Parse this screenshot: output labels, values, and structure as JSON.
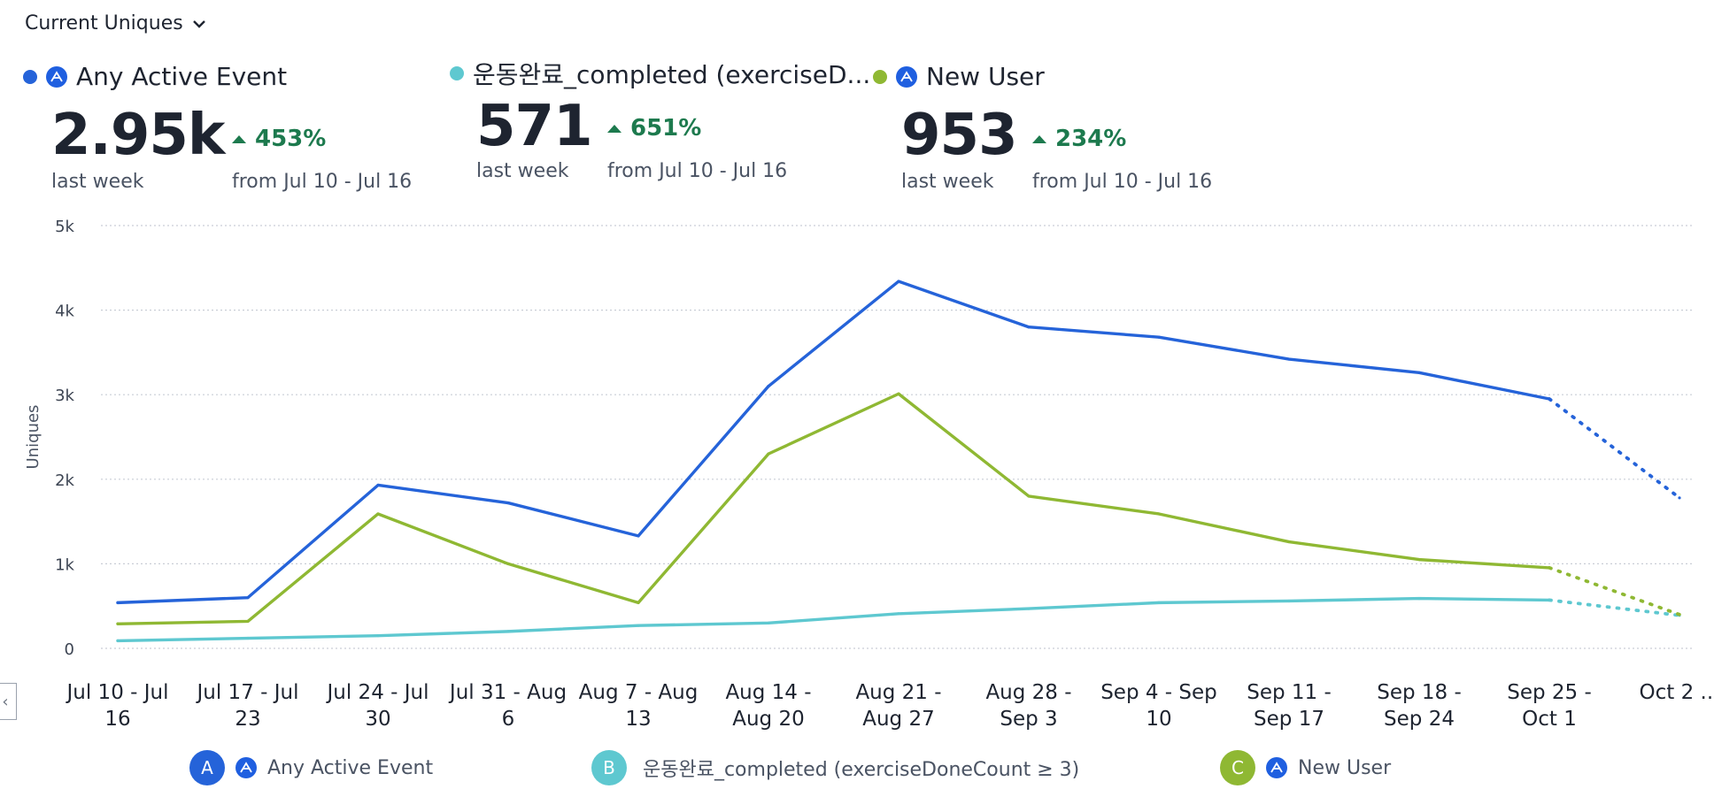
{
  "header": {
    "selector_label": "Current Uniques"
  },
  "metrics": [
    {
      "name": "Any Active Event",
      "value": "2.95k",
      "period": "last week",
      "change": "453%",
      "compare": "from Jul 10 - Jul 16",
      "color": "#2563d9"
    },
    {
      "name": "운동완료_completed (exerciseD...",
      "value": "571",
      "period": "last week",
      "change": "651%",
      "compare": "from Jul 10 - Jul 16",
      "color": "#5ec8d0"
    },
    {
      "name": "New User",
      "value": "953",
      "period": "last week",
      "change": "234%",
      "compare": "from Jul 10 - Jul 16",
      "color": "#8fb833"
    }
  ],
  "legend": [
    {
      "badge": "A",
      "label": "Any Active Event",
      "color": "#2563d9"
    },
    {
      "badge": "B",
      "label": "운동완료_completed (exerciseDoneCount ≥ 3)",
      "color": "#5ec8d0"
    },
    {
      "badge": "C",
      "label": "New User",
      "color": "#8fb833"
    }
  ],
  "chart_data": {
    "type": "line",
    "ylabel": "Uniques",
    "ylim": [
      0,
      5000
    ],
    "yticks": [
      "0",
      "1k",
      "2k",
      "3k",
      "4k",
      "5k"
    ],
    "categories": [
      [
        "Jul 10 - Jul",
        "16"
      ],
      [
        "Jul 17 - Jul",
        "23"
      ],
      [
        "Jul 24 - Jul",
        "30"
      ],
      [
        "Jul 31 - Aug",
        "6"
      ],
      [
        "Aug 7 - Aug",
        "13"
      ],
      [
        "Aug 14 -",
        "Aug 20"
      ],
      [
        "Aug 21 -",
        "Aug 27"
      ],
      [
        "Aug 28 -",
        "Sep 3"
      ],
      [
        "Sep 4 - Sep",
        "10"
      ],
      [
        "Sep 11 -",
        "Sep 17"
      ],
      [
        "Sep 18 -",
        "Sep 24"
      ],
      [
        "Sep 25 -",
        "Oct 1"
      ],
      [
        "Oct 2 ...",
        ""
      ]
    ],
    "incomplete_from_index": 11,
    "series": [
      {
        "name": "Any Active Event",
        "color": "#2563d9",
        "values": [
          540,
          600,
          1930,
          1720,
          1330,
          3100,
          4340,
          3800,
          3680,
          3420,
          3260,
          2950,
          1780
        ]
      },
      {
        "name": "운동완료_completed (exerciseDoneCount ≥ 3)",
        "color": "#5ec8d0",
        "values": [
          90,
          120,
          150,
          200,
          270,
          300,
          410,
          470,
          540,
          560,
          590,
          571,
          390
        ]
      },
      {
        "name": "New User",
        "color": "#8fb833",
        "values": [
          290,
          320,
          1590,
          1000,
          540,
          2300,
          3010,
          1800,
          1590,
          1260,
          1050,
          953,
          400
        ]
      }
    ]
  }
}
